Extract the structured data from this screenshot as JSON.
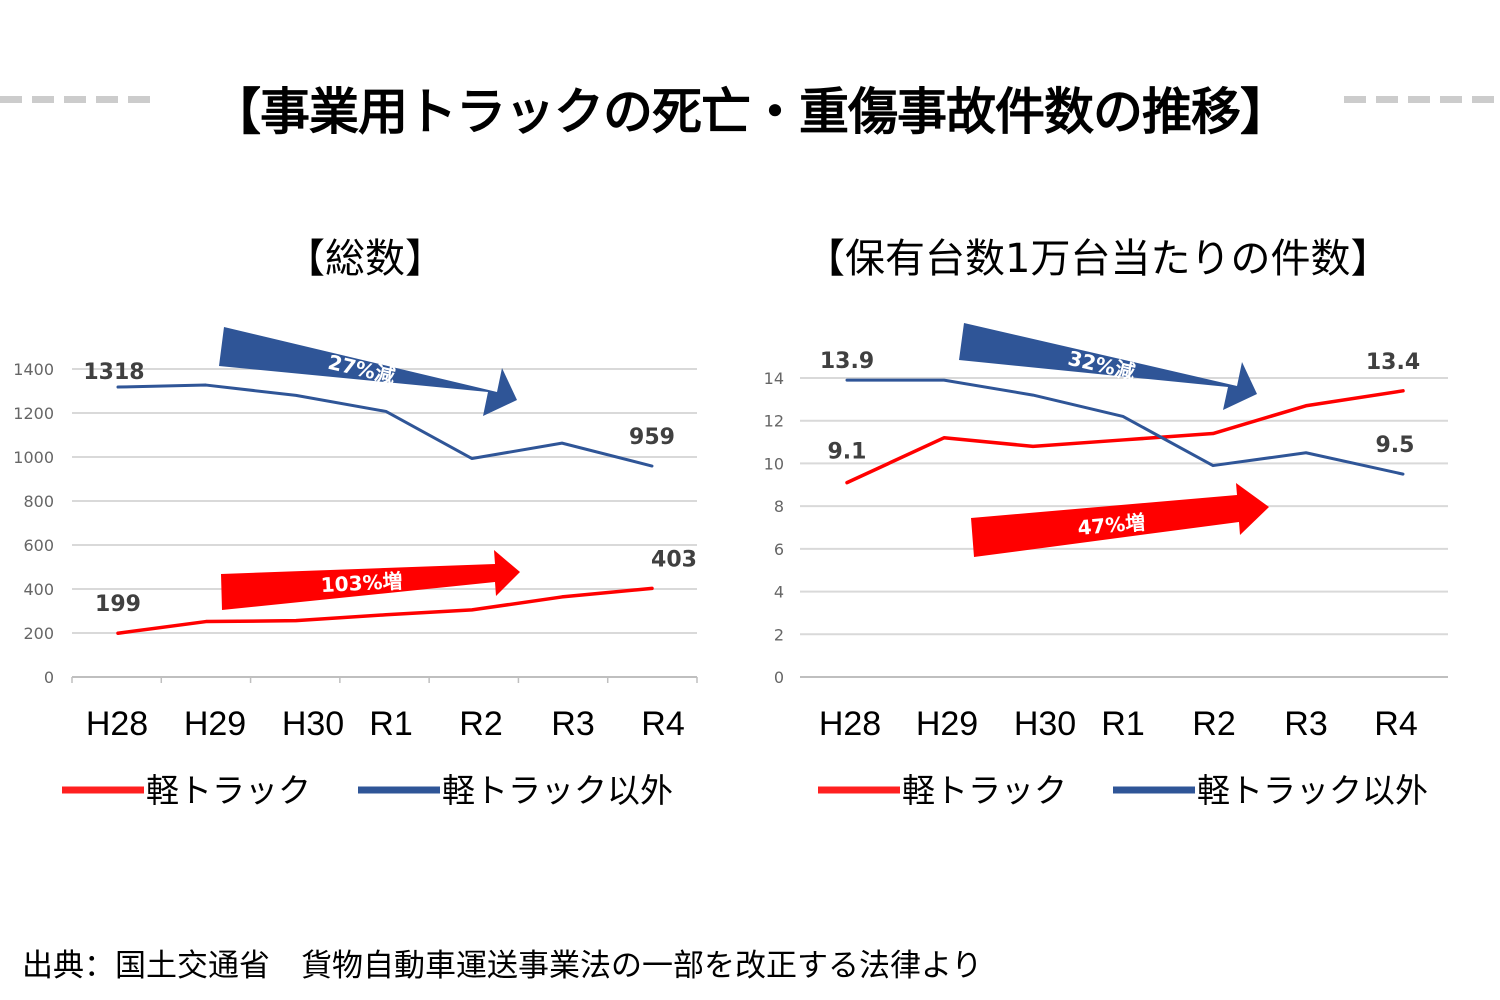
{
  "title": "【事業用トラックの死亡・重傷事故件数の推移】",
  "source": "出典：国土交通省　貨物自動車運送事業法の一部を改正する法律より",
  "colors": {
    "red": "#ff0000",
    "blue": "#2f5597",
    "legend_red": "#ff2020",
    "legend_blue": "#2f5597",
    "grid": "#d9d9d9"
  },
  "chart_data": [
    {
      "type": "line",
      "title": "【総数】",
      "categories": [
        "H28",
        "H29",
        "H30",
        "R1",
        "R2",
        "R3",
        "R4"
      ],
      "yticks": [
        0,
        200,
        400,
        600,
        800,
        1000,
        1200,
        1400
      ],
      "ylim": [
        0,
        1400
      ],
      "grid": true,
      "legend_position": "bottom",
      "series": [
        {
          "name": "軽トラック",
          "color": "#ff0000",
          "values": [
            199,
            252,
            256,
            283,
            305,
            364,
            403
          ],
          "labels": [
            {
              "index": 0,
              "text": "199"
            },
            {
              "index": 6,
              "text": "403"
            }
          ]
        },
        {
          "name": "軽トラック以外",
          "color": "#2f5597",
          "values": [
            1318,
            1327,
            1280,
            1207,
            993,
            1063,
            959
          ],
          "labels": [
            {
              "index": 0,
              "text": "1318"
            },
            {
              "index": 6,
              "text": "959"
            }
          ]
        }
      ],
      "annotations": [
        {
          "text": "27%減",
          "color": "#2f5597",
          "direction": "down-right"
        },
        {
          "text": "103%増",
          "color": "#ff0000",
          "direction": "up-right"
        }
      ]
    },
    {
      "type": "line",
      "title": "【保有台数1万台当たりの件数】",
      "categories": [
        "H28",
        "H29",
        "H30",
        "R1",
        "R2",
        "R3",
        "R4"
      ],
      "yticks": [
        0,
        2,
        4,
        6,
        8,
        10,
        12,
        14
      ],
      "ylim": [
        0,
        14
      ],
      "grid": true,
      "legend_position": "bottom",
      "series": [
        {
          "name": "軽トラック",
          "color": "#ff0000",
          "values": [
            9.1,
            11.2,
            10.8,
            11.1,
            11.4,
            12.7,
            13.4
          ],
          "labels": [
            {
              "index": 0,
              "text": "9.1"
            },
            {
              "index": 6,
              "text": "13.4"
            }
          ]
        },
        {
          "name": "軽トラック以外",
          "color": "#2f5597",
          "values": [
            13.9,
            13.9,
            13.2,
            12.2,
            9.9,
            10.5,
            9.5
          ],
          "labels": [
            {
              "index": 0,
              "text": "13.9"
            },
            {
              "index": 6,
              "text": "9.5"
            }
          ]
        }
      ],
      "annotations": [
        {
          "text": "32%減",
          "color": "#2f5597",
          "direction": "down-right"
        },
        {
          "text": "47%増",
          "color": "#ff0000",
          "direction": "up-right"
        }
      ]
    }
  ]
}
